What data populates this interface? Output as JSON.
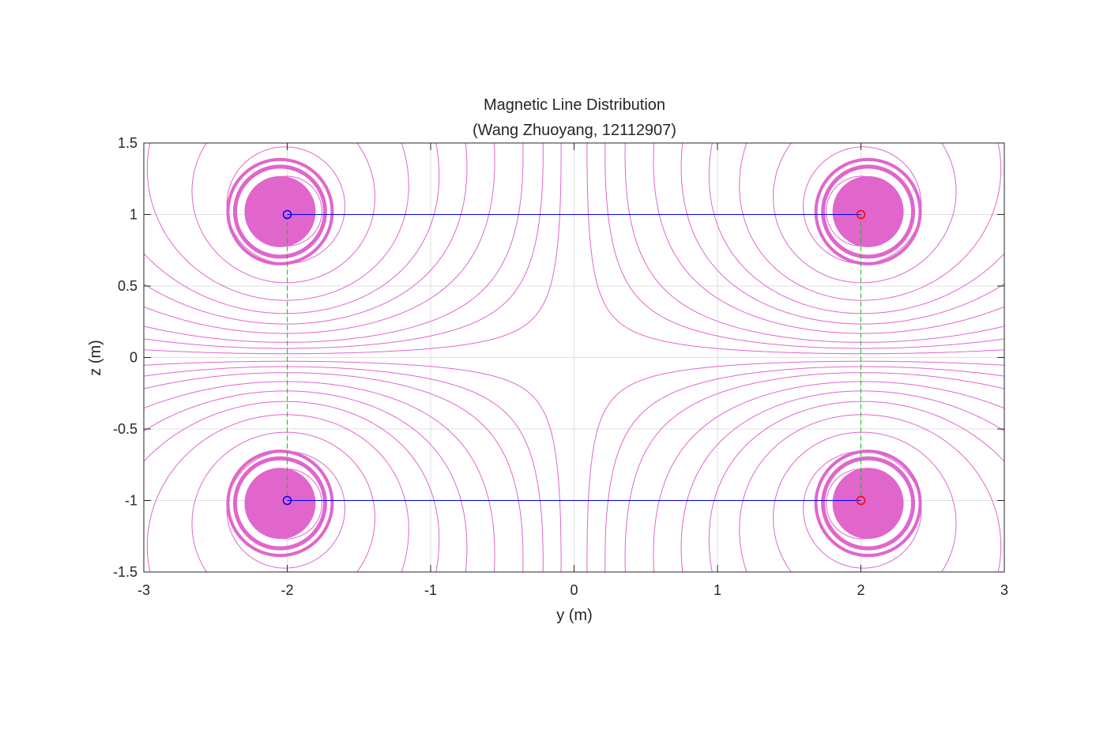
{
  "chart_data": {
    "type": "contour",
    "title": "Magnetic Line Distribution",
    "subtitle": "(Wang Zhuoyang, 12112907)",
    "xlabel": "y (m)",
    "ylabel": "z (m)",
    "xlim": [
      -3,
      3
    ],
    "ylim": [
      -1.5,
      1.5
    ],
    "xticks": [
      "-3",
      "-2",
      "-1",
      "0",
      "1",
      "2",
      "3"
    ],
    "xtick_values": [
      -3,
      -2,
      -1,
      0,
      1,
      2,
      3
    ],
    "yticks": [
      "1.5",
      "1",
      "0.5",
      "0",
      "-0.5",
      "-1",
      "-1.5"
    ],
    "ytick_values": [
      1.5,
      1,
      0.5,
      0,
      -0.5,
      -1,
      -1.5
    ],
    "grid": true,
    "field_line_color": "#e066cc",
    "wire_connection_color": "#0000ff",
    "vertical_guide_color": "#00cc00",
    "sources": [
      {
        "y": -2,
        "z": 1,
        "marker_color": "#0000ff"
      },
      {
        "y": 2,
        "z": 1,
        "marker_color": "#ff0000"
      },
      {
        "y": -2,
        "z": -1,
        "marker_color": "#0000ff"
      },
      {
        "y": 2,
        "z": -1,
        "marker_color": "#ff0000"
      }
    ],
    "connections": [
      {
        "from": [
          -2,
          1
        ],
        "to": [
          2,
          1
        ],
        "style": "solid",
        "color": "#0000ff"
      },
      {
        "from": [
          -2,
          -1
        ],
        "to": [
          2,
          -1
        ],
        "style": "solid",
        "color": "#0000ff"
      },
      {
        "from": [
          -2,
          1
        ],
        "to": [
          -2,
          -1
        ],
        "style": "dashed",
        "color": "#00cc00"
      },
      {
        "from": [
          2,
          1
        ],
        "to": [
          2,
          -1
        ],
        "style": "dashed",
        "color": "#00cc00"
      }
    ],
    "contour_levels": [
      0.05,
      0.12,
      0.2,
      0.32,
      0.45,
      0.6,
      0.8,
      1.1,
      1.5,
      2.0,
      2.7,
      3.6
    ],
    "filled_level_threshold": 3.0
  }
}
